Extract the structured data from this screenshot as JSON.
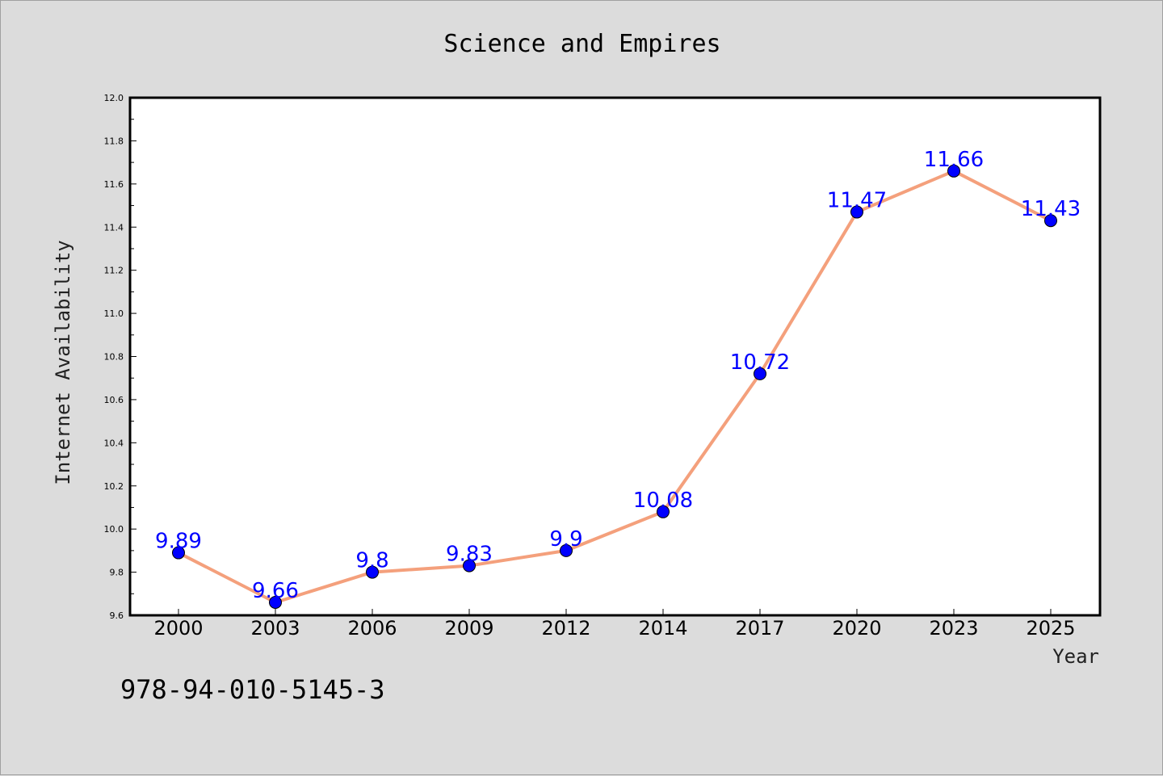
{
  "chart_data": {
    "type": "line",
    "title": "Science and Empires",
    "xlabel": "Year",
    "ylabel": "Internet Availability",
    "categories": [
      "2000",
      "2003",
      "2006",
      "2009",
      "2012",
      "2014",
      "2017",
      "2020",
      "2023",
      "2025"
    ],
    "series": [
      {
        "values": [
          9.89,
          9.66,
          9.8,
          9.83,
          9.9,
          10.08,
          10.72,
          11.47,
          11.66,
          11.43
        ],
        "line_color": "#f4a07c",
        "marker_color": "#0000ff"
      }
    ],
    "data_labels": [
      "9.89",
      "9.66",
      "9.8",
      "9.83",
      "9.9",
      "10.08",
      "10.72",
      "11.47",
      "11.66",
      "11.43"
    ],
    "ylim": [
      9.6,
      12.0
    ],
    "yticks": [
      "9.6",
      "9.8",
      "10.0",
      "10.2",
      "10.4",
      "10.6",
      "10.8",
      "11.0",
      "11.2",
      "11.4",
      "11.6",
      "11.8",
      "12.0"
    ],
    "grid": false,
    "legend": "none"
  },
  "annotation": {
    "text": "978-94-010-5145-3"
  }
}
